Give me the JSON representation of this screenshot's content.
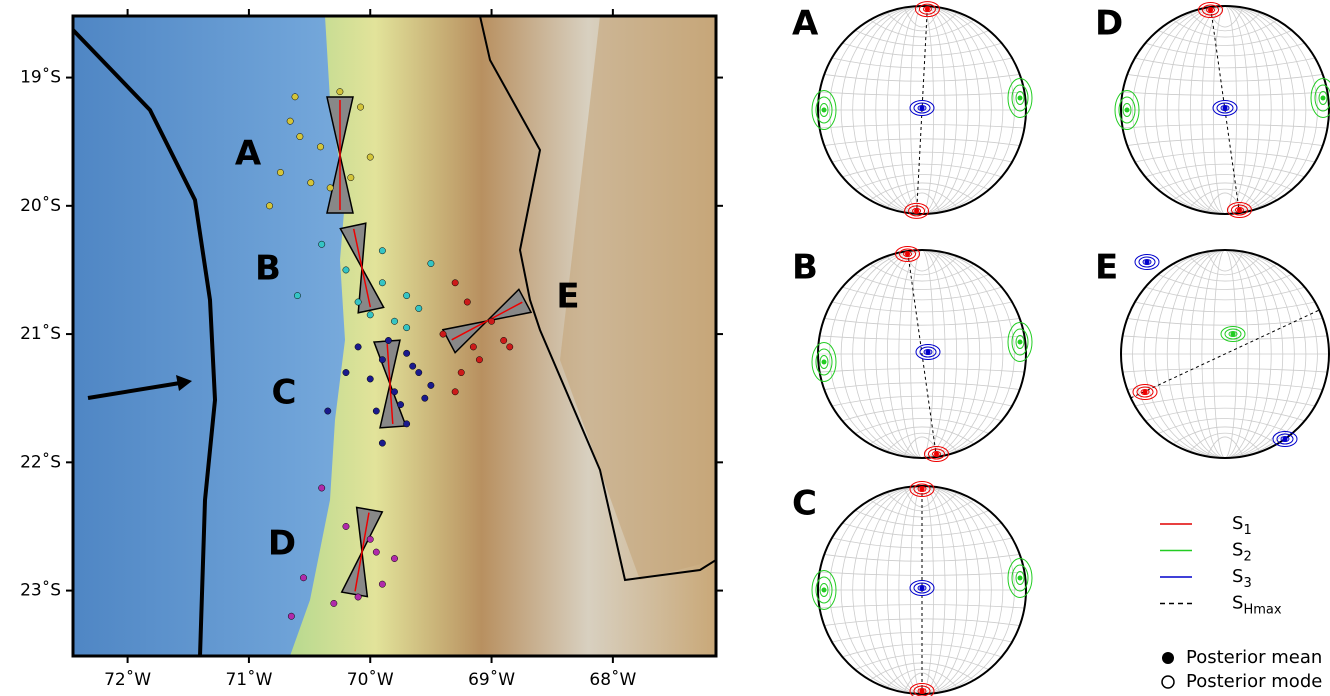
{
  "map": {
    "xlim": [
      -72.45,
      -67.15
    ],
    "ylim": [
      -23.51,
      -18.52
    ],
    "xticks": [
      {
        "value": -72,
        "label": "72˚W"
      },
      {
        "value": -71,
        "label": "71˚W"
      },
      {
        "value": -70,
        "label": "70˚W"
      },
      {
        "value": -69,
        "label": "69˚W"
      },
      {
        "value": -68,
        "label": "68˚W"
      }
    ],
    "yticks": [
      {
        "value": -19,
        "label": "19˚S"
      },
      {
        "value": -20,
        "label": "20˚S"
      },
      {
        "value": -21,
        "label": "21˚S"
      },
      {
        "value": -22,
        "label": "22˚S"
      },
      {
        "value": -23,
        "label": "23˚S"
      }
    ],
    "regions": [
      {
        "label": "A",
        "color": "#d4c53a",
        "lon": [
          -70.66,
          -70.58,
          -70.41,
          -70.25,
          -70.08,
          -70.74,
          -70.49,
          -70.33,
          -70.0,
          -70.62,
          -70.16,
          -70.83
        ],
        "lat": [
          -19.34,
          -19.46,
          -19.54,
          -19.11,
          -19.23,
          -19.74,
          -19.82,
          -19.86,
          -19.62,
          -19.15,
          -19.78,
          -20.0
        ]
      },
      {
        "label": "B",
        "color": "#35c4c4",
        "lon": [
          -70.4,
          -70.2,
          -69.9,
          -69.7,
          -69.6,
          -70.1,
          -69.8,
          -69.5,
          -70.6,
          -69.9,
          -70.0,
          -69.7
        ],
        "lat": [
          -20.3,
          -20.5,
          -20.6,
          -20.7,
          -20.8,
          -20.75,
          -20.9,
          -20.45,
          -20.7,
          -20.35,
          -20.85,
          -20.95
        ]
      },
      {
        "label": "C",
        "color": "#1a1a8c",
        "lon": [
          -70.1,
          -69.9,
          -69.7,
          -69.6,
          -70.0,
          -69.8,
          -69.5,
          -69.95,
          -69.75,
          -69.65,
          -70.2,
          -69.85,
          -69.55,
          -70.35,
          -69.9,
          -69.7
        ],
        "lat": [
          -21.1,
          -21.2,
          -21.15,
          -21.3,
          -21.35,
          -21.45,
          -21.4,
          -21.6,
          -21.55,
          -21.25,
          -21.3,
          -21.05,
          -21.5,
          -21.6,
          -21.85,
          -21.7
        ]
      },
      {
        "label": "D",
        "color": "#b02aaa",
        "lon": [
          -70.4,
          -70.2,
          -70.0,
          -69.8,
          -70.55,
          -70.3,
          -69.9,
          -70.65,
          -70.1,
          -69.95
        ],
        "lat": [
          -22.2,
          -22.5,
          -22.6,
          -22.75,
          -22.9,
          -23.1,
          -22.95,
          -23.2,
          -23.05,
          -22.7
        ]
      },
      {
        "label": "E",
        "color": "#cc1a1a",
        "lon": [
          -69.3,
          -69.2,
          -69.0,
          -69.15,
          -68.9,
          -69.4,
          -69.25,
          -69.1,
          -68.85,
          -69.3
        ],
        "lat": [
          -20.6,
          -20.75,
          -20.9,
          -21.1,
          -21.05,
          -21.0,
          -21.3,
          -21.2,
          -21.1,
          -21.45
        ]
      }
    ]
  },
  "stereonets": [
    "A",
    "D",
    "B",
    "E",
    "C"
  ],
  "legend": {
    "entries": [
      {
        "symbol": "S",
        "sub": "1",
        "color": "#e00000"
      },
      {
        "symbol": "S",
        "sub": "2",
        "color": "#22cc22"
      },
      {
        "symbol": "S",
        "sub": "3",
        "color": "#0000cc"
      },
      {
        "symbol": "S",
        "sub": "Hmax",
        "color": "#000000"
      }
    ],
    "mean": "Posterior mean",
    "mode": "Posterior mode"
  }
}
